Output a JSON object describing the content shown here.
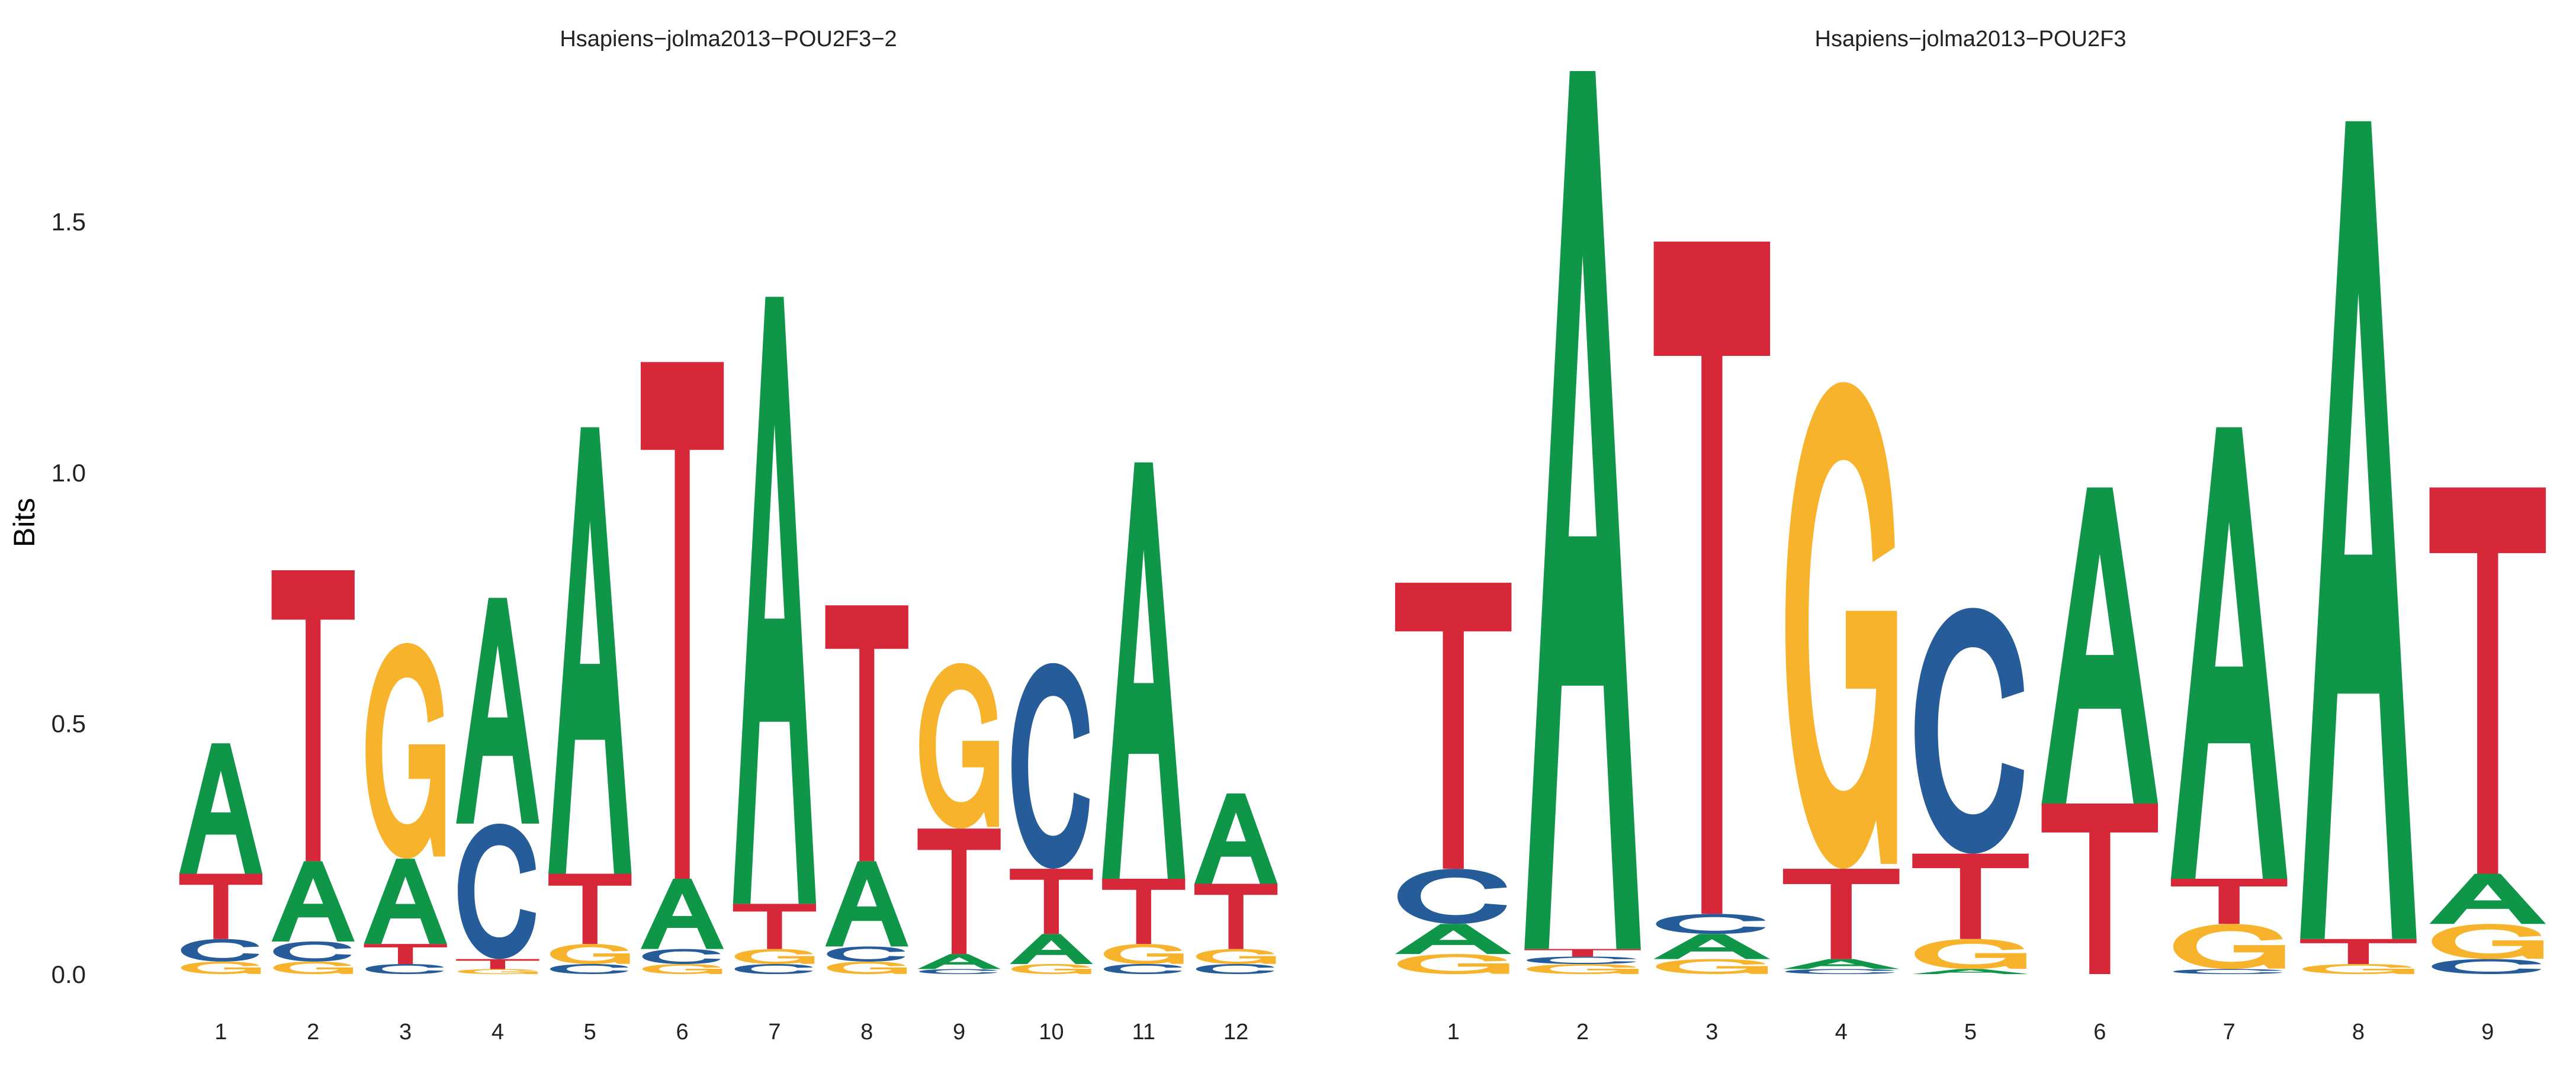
{
  "figure": {
    "ylabel": "Bits",
    "y_ticks": [
      "0.0",
      "0.5",
      "1.0",
      "1.5"
    ]
  },
  "colors": {
    "A": "#109648",
    "C": "#255C99",
    "G": "#F7B32B",
    "T": "#D62839"
  },
  "chart_data": [
    {
      "type": "sequence-logo",
      "title": "Hsapiens−jolma2013−POU2F3−2",
      "ylabel": "Bits",
      "ylim": [
        0,
        1.8
      ],
      "y_ticks": [
        0.0,
        0.5,
        1.0,
        1.5
      ],
      "positions": [
        "1",
        "2",
        "3",
        "4",
        "5",
        "6",
        "7",
        "8",
        "9",
        "10",
        "11",
        "12"
      ],
      "stacks": [
        [
          {
            "letter": "G",
            "height": 0.025
          },
          {
            "letter": "C",
            "height": 0.045
          },
          {
            "letter": "T",
            "height": 0.13
          },
          {
            "letter": "A",
            "height": 0.26
          }
        ],
        [
          {
            "letter": "G",
            "height": 0.025
          },
          {
            "letter": "C",
            "height": 0.04
          },
          {
            "letter": "A",
            "height": 0.16
          },
          {
            "letter": "T",
            "height": 0.58
          }
        ],
        [
          {
            "letter": "C",
            "height": 0.02
          },
          {
            "letter": "T",
            "height": 0.04
          },
          {
            "letter": "A",
            "height": 0.17
          },
          {
            "letter": "G",
            "height": 0.43
          }
        ],
        [
          {
            "letter": "G",
            "height": 0.01
          },
          {
            "letter": "T",
            "height": 0.02
          },
          {
            "letter": "C",
            "height": 0.27
          },
          {
            "letter": "A",
            "height": 0.45
          }
        ],
        [
          {
            "letter": "C",
            "height": 0.02
          },
          {
            "letter": "G",
            "height": 0.04
          },
          {
            "letter": "T",
            "height": 0.14
          },
          {
            "letter": "A",
            "height": 0.89
          }
        ],
        [
          {
            "letter": "G",
            "height": 0.02
          },
          {
            "letter": "C",
            "height": 0.03
          },
          {
            "letter": "A",
            "height": 0.14
          },
          {
            "letter": "T",
            "height": 1.03
          }
        ],
        [
          {
            "letter": "C",
            "height": 0.02
          },
          {
            "letter": "G",
            "height": 0.03
          },
          {
            "letter": "T",
            "height": 0.09
          },
          {
            "letter": "A",
            "height": 1.21
          }
        ],
        [
          {
            "letter": "G",
            "height": 0.025
          },
          {
            "letter": "C",
            "height": 0.03
          },
          {
            "letter": "A",
            "height": 0.17
          },
          {
            "letter": "T",
            "height": 0.51
          }
        ],
        [
          {
            "letter": "C",
            "height": 0.01
          },
          {
            "letter": "A",
            "height": 0.03
          },
          {
            "letter": "T",
            "height": 0.25
          },
          {
            "letter": "G",
            "height": 0.33
          }
        ],
        [
          {
            "letter": "G",
            "height": 0.02
          },
          {
            "letter": "A",
            "height": 0.06
          },
          {
            "letter": "T",
            "height": 0.13
          },
          {
            "letter": "C",
            "height": 0.41
          }
        ],
        [
          {
            "letter": "C",
            "height": 0.02
          },
          {
            "letter": "G",
            "height": 0.04
          },
          {
            "letter": "T",
            "height": 0.13
          },
          {
            "letter": "A",
            "height": 0.83
          }
        ],
        [
          {
            "letter": "C",
            "height": 0.02
          },
          {
            "letter": "G",
            "height": 0.03
          },
          {
            "letter": "T",
            "height": 0.13
          },
          {
            "letter": "A",
            "height": 0.18
          }
        ]
      ]
    },
    {
      "type": "sequence-logo",
      "title": "Hsapiens−jolma2013−POU2F3",
      "ylabel": "",
      "ylim": [
        0,
        1.8
      ],
      "y_ticks": [
        0.0,
        0.5,
        1.0,
        1.5
      ],
      "positions": [
        "1",
        "2",
        "3",
        "4",
        "5",
        "6",
        "7",
        "8",
        "9"
      ],
      "stacks": [
        [
          {
            "letter": "G",
            "height": 0.04
          },
          {
            "letter": "A",
            "height": 0.06
          },
          {
            "letter": "C",
            "height": 0.11
          },
          {
            "letter": "T",
            "height": 0.57
          }
        ],
        [
          {
            "letter": "G",
            "height": 0.02
          },
          {
            "letter": "C",
            "height": 0.015
          },
          {
            "letter": "T",
            "height": 0.015
          },
          {
            "letter": "A",
            "height": 1.75
          }
        ],
        [
          {
            "letter": "G",
            "height": 0.03
          },
          {
            "letter": "A",
            "height": 0.05
          },
          {
            "letter": "C",
            "height": 0.04
          },
          {
            "letter": "T",
            "height": 1.34
          }
        ],
        [
          {
            "letter": "C",
            "height": 0.01
          },
          {
            "letter": "A",
            "height": 0.02
          },
          {
            "letter": "T",
            "height": 0.18
          },
          {
            "letter": "G",
            "height": 0.97
          }
        ],
        [
          {
            "letter": "A",
            "height": 0.01
          },
          {
            "letter": "G",
            "height": 0.06
          },
          {
            "letter": "T",
            "height": 0.17
          },
          {
            "letter": "C",
            "height": 0.49
          }
        ],
        [
          {
            "letter": "T",
            "height": 0.34
          },
          {
            "letter": "A",
            "height": 0.63
          }
        ],
        [
          {
            "letter": "C",
            "height": 0.01
          },
          {
            "letter": "G",
            "height": 0.09
          },
          {
            "letter": "T",
            "height": 0.09
          },
          {
            "letter": "A",
            "height": 0.9
          }
        ],
        [
          {
            "letter": "G",
            "height": 0.02
          },
          {
            "letter": "T",
            "height": 0.05
          },
          {
            "letter": "A",
            "height": 1.63
          }
        ],
        [
          {
            "letter": "C",
            "height": 0.03
          },
          {
            "letter": "G",
            "height": 0.07
          },
          {
            "letter": "A",
            "height": 0.1
          },
          {
            "letter": "T",
            "height": 0.77
          }
        ]
      ]
    }
  ]
}
